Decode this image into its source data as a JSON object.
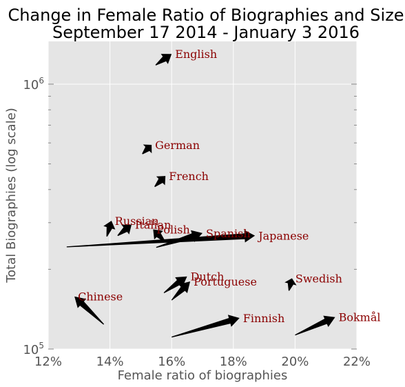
{
  "chart_data": {
    "type": "scatter",
    "subtype": "arrow-field",
    "title_line1": "Change in Female Ratio of Biographies and Size",
    "title_line2": "September 17 2014 - January 3 2016",
    "xlabel": "Female ratio of biographies",
    "ylabel": "Total Biographies (log scale)",
    "xlim": [
      0.12,
      0.22
    ],
    "ylim": [
      100000,
      1450000
    ],
    "yscale": "log",
    "x_ticks": [
      {
        "value": 0.12,
        "label": "12%"
      },
      {
        "value": 0.14,
        "label": "14%"
      },
      {
        "value": 0.16,
        "label": "16%"
      },
      {
        "value": 0.18,
        "label": "18%"
      },
      {
        "value": 0.2,
        "label": "20%"
      },
      {
        "value": 0.22,
        "label": "22%"
      }
    ],
    "y_ticks": [
      {
        "value": 100000,
        "label": "10",
        "exp": "5"
      },
      {
        "value": 1000000,
        "label": "10",
        "exp": "6"
      }
    ],
    "grid": true,
    "background": "#e5e5e5",
    "arrow_color": "#000000",
    "label_color": "#8b0000",
    "series": [
      {
        "label": "English",
        "x0": 0.1548,
        "y0": 1180000,
        "x1": 0.16,
        "y1": 1300000
      },
      {
        "label": "German",
        "x0": 0.1505,
        "y0": 545000,
        "x1": 0.1535,
        "y1": 590000
      },
      {
        "label": "French",
        "x0": 0.1545,
        "y0": 410000,
        "x1": 0.158,
        "y1": 450000
      },
      {
        "label": "Russian",
        "x0": 0.139,
        "y0": 266000,
        "x1": 0.1405,
        "y1": 305000
      },
      {
        "label": "Italian",
        "x0": 0.1425,
        "y0": 268000,
        "x1": 0.147,
        "y1": 295000
      },
      {
        "label": "Polish",
        "x0": 0.158,
        "y0": 253000,
        "x1": 0.154,
        "y1": 283000
      },
      {
        "label": "Spanish",
        "x0": 0.155,
        "y0": 242000,
        "x1": 0.17,
        "y1": 274000
      },
      {
        "label": "Japanese",
        "x0": 0.126,
        "y0": 243000,
        "x1": 0.187,
        "y1": 268000
      },
      {
        "label": "Dutch",
        "x0": 0.1575,
        "y0": 163000,
        "x1": 0.165,
        "y1": 188000
      },
      {
        "label": "Portuguese",
        "x0": 0.16,
        "y0": 153000,
        "x1": 0.166,
        "y1": 180000
      },
      {
        "label": "Swedish",
        "x0": 0.198,
        "y0": 166000,
        "x1": 0.199,
        "y1": 185000
      },
      {
        "label": "Chinese",
        "x0": 0.138,
        "y0": 124000,
        "x1": 0.1285,
        "y1": 158000
      },
      {
        "label": "Finnish",
        "x0": 0.16,
        "y0": 111000,
        "x1": 0.182,
        "y1": 131000
      },
      {
        "label": "Bokmål",
        "x0": 0.2,
        "y0": 113000,
        "x1": 0.213,
        "y1": 132000
      }
    ]
  }
}
